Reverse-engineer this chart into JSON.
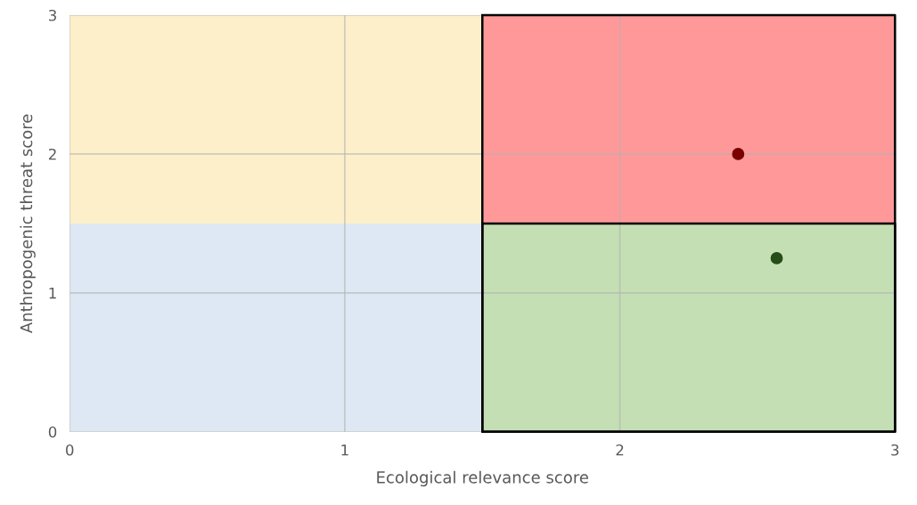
{
  "chart_data": {
    "type": "area",
    "xlabel": "Ecological relevance score",
    "ylabel": "Anthropogenic threat score",
    "xlim": [
      0,
      3
    ],
    "ylim": [
      0,
      3
    ],
    "xticks": [
      0,
      1,
      2,
      3
    ],
    "yticks": [
      0,
      1,
      2,
      3
    ],
    "grid": true,
    "series": [
      {
        "x": [
          0,
          1.5
        ],
        "values": [
          3,
          3
        ],
        "color": "#fdefc9"
      },
      {
        "x": [
          0,
          1.5
        ],
        "values": [
          1.5,
          1.5
        ],
        "color": "#dde8f4"
      },
      {
        "x": [
          1.5,
          3
        ],
        "values": [
          3,
          3
        ],
        "color": "#ff9999",
        "line_style": "solid"
      },
      {
        "x": [
          1.5,
          3
        ],
        "values": [
          1.5,
          1.5
        ],
        "color": "#c5dfb5",
        "line_style": "solid"
      },
      {
        "type": "scatter",
        "marker": "circle",
        "x": [
          2.43
        ],
        "values": [
          2.0
        ],
        "color": "#7a0000"
      },
      {
        "type": "scatter",
        "marker": "circle",
        "x": [
          2.57
        ],
        "values": [
          1.25
        ],
        "color": "#264d17"
      }
    ]
  }
}
